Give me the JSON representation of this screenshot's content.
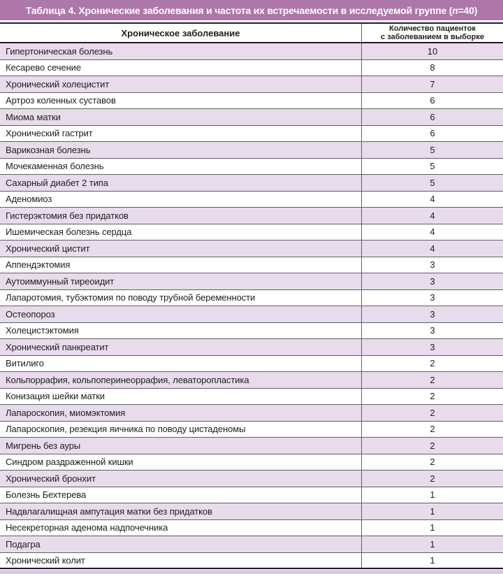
{
  "title": {
    "prefix": "Таблица 4. Хронические заболевания и частота их встречаемости в исследуемой группе (",
    "n_italic": "n",
    "suffix": "=40)"
  },
  "columns": {
    "disease": "Хроническое заболевание",
    "count_line1": "Количество пациенток",
    "count_line2": "с заболеванием в выборке"
  },
  "chart_data": {
    "type": "table",
    "columns": [
      "Хроническое заболевание",
      "Количество пациенток с заболеванием в выборке"
    ],
    "rows": [
      [
        "Гипертоническая болезнь",
        10
      ],
      [
        "Кесарево сечение",
        8
      ],
      [
        "Хронический холецистит",
        7
      ],
      [
        "Артроз коленных суставов",
        6
      ],
      [
        "Миома матки",
        6
      ],
      [
        "Хронический гастрит",
        6
      ],
      [
        "Варикозная болезнь",
        5
      ],
      [
        "Мочекаменная болезнь",
        5
      ],
      [
        "Сахарный диабет 2 типа",
        5
      ],
      [
        "Аденомиоз",
        4
      ],
      [
        "Гистерэктомия без придатков",
        4
      ],
      [
        "Ишемическая болезнь сердца",
        4
      ],
      [
        "Хронический цистит",
        4
      ],
      [
        "Аппендэктомия",
        3
      ],
      [
        "Аутоиммунный тиреоидит",
        3
      ],
      [
        "Лапаротомия, тубэктомия по поводу трубной беременности",
        3
      ],
      [
        "Остеопороз",
        3
      ],
      [
        "Холецистэктомия",
        3
      ],
      [
        "Хронический панкреатит",
        3
      ],
      [
        "Витилиго",
        2
      ],
      [
        "Кольпоррафия, кольпоперинеоррафия, леваторопластика",
        2
      ],
      [
        "Конизация шейки матки",
        2
      ],
      [
        "Лапароскопия, миомэктомия",
        2
      ],
      [
        "Лапароскопия, резекция яичника по поводу цистаденомы",
        2
      ],
      [
        "Мигрень без ауры",
        2
      ],
      [
        "Синдром раздраженной кишки",
        2
      ],
      [
        "Хронический бронхит",
        2
      ],
      [
        "Болезнь Бехтерева",
        1
      ],
      [
        "Надвлагалищная ампутация матки без придатков",
        1
      ],
      [
        "Несекреторная аденома надпочечника",
        1
      ],
      [
        "Подагра",
        1
      ],
      [
        "Хронический колит",
        1
      ]
    ]
  },
  "colors": {
    "accent": "#ad77a9",
    "title-text": "#ffffff",
    "row-odd": "#e8dcec",
    "row-even": "#ffffff",
    "line": "#5f5f5f",
    "heavy-line": "#1c1c1c",
    "page-strip": "#d9cbdf",
    "text": "#1d1d1d"
  }
}
